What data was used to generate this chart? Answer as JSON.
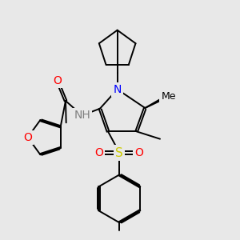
{
  "background_color": "#e8e8e8",
  "atom_colors": {
    "C": "#000000",
    "N": "#0000ff",
    "O": "#ff0000",
    "S": "#cccc00",
    "H": "#808080"
  },
  "bond_color": "#000000",
  "bond_lw": 1.4,
  "dbo": 0.06,
  "fs": 10
}
